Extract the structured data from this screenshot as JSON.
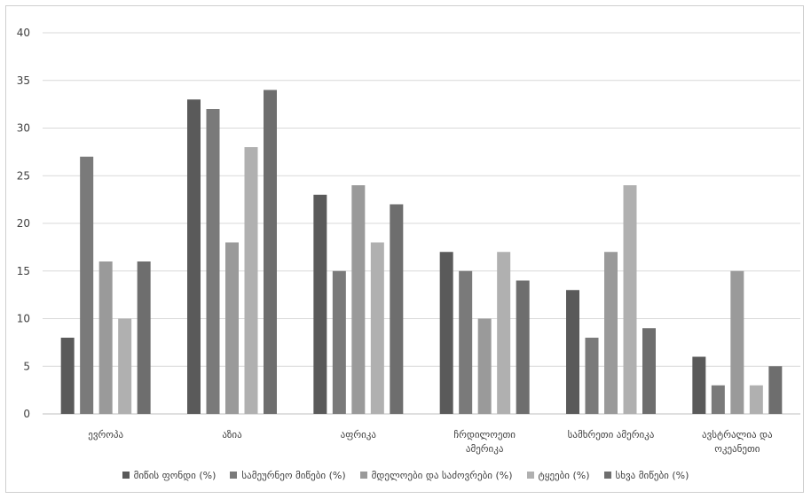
{
  "chart_data": {
    "type": "bar",
    "title": "",
    "xlabel": "",
    "ylabel": "",
    "ylim": [
      0,
      40
    ],
    "yticks": [
      0,
      5,
      10,
      15,
      20,
      25,
      30,
      35,
      40
    ],
    "grid": true,
    "legend_position": "bottom",
    "categories": [
      [
        "ევროპა"
      ],
      [
        "აზია"
      ],
      [
        "აფრიკა"
      ],
      [
        "ჩრდილოეთი",
        "ამერიკა"
      ],
      [
        "სამხრეთი ამერიკა"
      ],
      [
        "ავსტრალია და",
        "ოკეანეთი"
      ]
    ],
    "series": [
      {
        "name": "მიწის ფონდი (%)",
        "color": "#5a5a5a",
        "values": [
          8,
          33,
          23,
          17,
          13,
          6
        ]
      },
      {
        "name": "სამეურნეო მიწები (%)",
        "color": "#7a7a7a",
        "values": [
          27,
          32,
          15,
          15,
          8,
          3
        ]
      },
      {
        "name": "მდელოები და საძოვრები (%)",
        "color": "#9a9a9a",
        "values": [
          16,
          18,
          24,
          10,
          17,
          15
        ]
      },
      {
        "name": "ტყეები (%)",
        "color": "#b0b0b0",
        "values": [
          10,
          28,
          18,
          17,
          24,
          3
        ]
      },
      {
        "name": "სხვა მიწები (%)",
        "color": "#6e6e6e",
        "values": [
          16,
          34,
          22,
          14,
          9,
          5
        ]
      }
    ]
  }
}
